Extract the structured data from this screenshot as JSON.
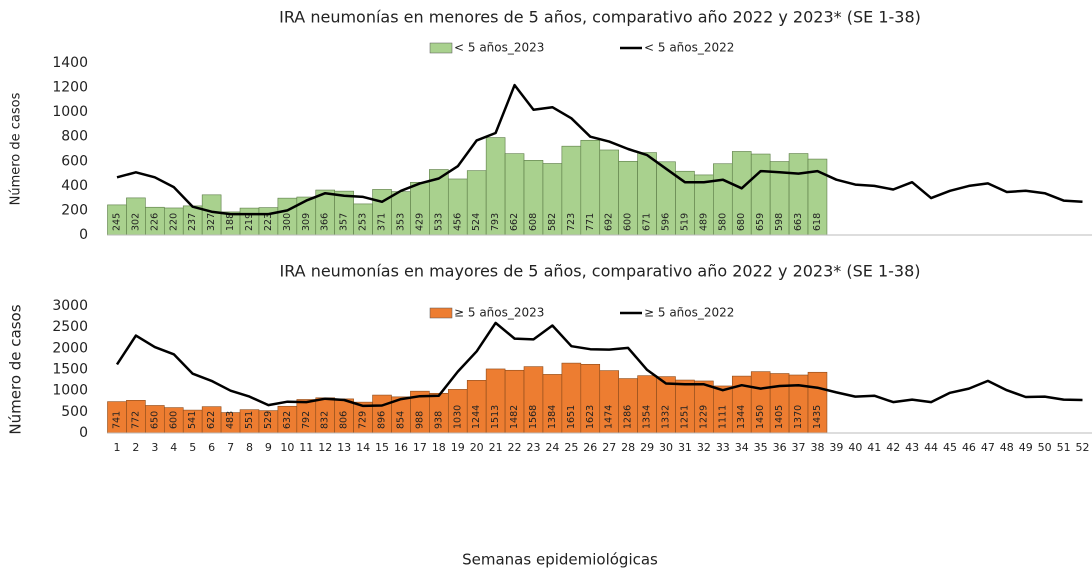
{
  "chart_data": [
    {
      "type": "bar",
      "title": "IRA neumonías en menores de 5 años, comparativo año 2022 y 2023* (SE 1-38)",
      "y_label": "Número de casos",
      "categories": [
        null,
        null,
        null,
        null,
        null,
        null,
        null,
        null,
        null,
        null,
        null,
        null,
        null,
        null,
        null,
        null,
        null,
        null,
        null,
        null,
        null,
        null,
        null,
        null,
        null,
        null,
        null,
        null,
        null,
        null,
        null,
        null,
        null,
        null,
        null,
        null,
        null,
        null,
        null,
        null,
        null,
        null,
        null,
        null,
        null,
        null,
        null,
        null,
        null,
        null,
        null,
        null
      ],
      "ylim": [
        0,
        1400
      ],
      "yticks": [
        0,
        200,
        400,
        600,
        800,
        1000,
        1200,
        1400
      ],
      "legend": "top",
      "series": [
        {
          "name": "< 5 años_2023",
          "color": "#a9d18e",
          "type": "bar",
          "values": [
            245,
            302,
            226,
            220,
            237,
            327,
            188,
            219,
            223,
            300,
            309,
            366,
            357,
            253,
            371,
            353,
            429,
            533,
            456,
            524,
            793,
            662,
            608,
            582,
            723,
            771,
            692,
            600,
            671,
            596,
            519,
            489,
            580,
            680,
            659,
            598,
            663,
            618,
            null,
            null,
            null,
            null,
            null,
            null,
            null,
            null,
            null,
            null,
            null,
            null,
            null,
            null
          ]
        },
        {
          "name": "< 5 años_2022",
          "color": "#000000",
          "type": "line",
          "values": [
            470,
            510,
            470,
            390,
            230,
            190,
            170,
            170,
            170,
            200,
            280,
            340,
            320,
            310,
            270,
            360,
            420,
            460,
            560,
            770,
            830,
            1220,
            1020,
            1040,
            950,
            800,
            760,
            700,
            650,
            540,
            430,
            430,
            450,
            380,
            520,
            510,
            500,
            520,
            450,
            410,
            400,
            370,
            430,
            300,
            360,
            400,
            420,
            350,
            360,
            340,
            280,
            270
          ]
        }
      ]
    },
    {
      "type": "bar",
      "title": "IRA neumonías en mayores de 5 años, comparativo año 2022 y 2023* (SE 1-38)",
      "y_label": "Número de casos",
      "x_label": "Semanas epidemiológicas",
      "categories": [
        1,
        2,
        3,
        4,
        5,
        6,
        7,
        8,
        9,
        10,
        11,
        12,
        13,
        14,
        15,
        16,
        17,
        18,
        19,
        20,
        21,
        22,
        23,
        24,
        25,
        26,
        27,
        28,
        29,
        30,
        31,
        32,
        33,
        34,
        35,
        36,
        37,
        38,
        39,
        40,
        41,
        42,
        43,
        44,
        45,
        46,
        47,
        48,
        49,
        50,
        51,
        52
      ],
      "ylim": [
        0,
        3000
      ],
      "yticks": [
        0,
        500,
        1000,
        1500,
        2000,
        2500,
        3000
      ],
      "legend": "top",
      "series": [
        {
          "name": "≥ 5 años_2023",
          "color": "#ed7d31",
          "type": "bar",
          "values": [
            741,
            772,
            650,
            600,
            541,
            622,
            483,
            551,
            529,
            632,
            792,
            832,
            806,
            729,
            896,
            854,
            988,
            938,
            1030,
            1244,
            1513,
            1482,
            1568,
            1384,
            1651,
            1623,
            1474,
            1286,
            1354,
            1332,
            1251,
            1229,
            1111,
            1344,
            1450,
            1405,
            1370,
            1435,
            null,
            null,
            null,
            null,
            null,
            null,
            null,
            null,
            null,
            null,
            null,
            null,
            null,
            null
          ]
        },
        {
          "name": "≥ 5 años_2022",
          "color": "#000000",
          "type": "line",
          "values": [
            1620,
            2300,
            2030,
            1860,
            1400,
            1230,
            1000,
            860,
            660,
            740,
            730,
            810,
            780,
            640,
            650,
            800,
            870,
            880,
            1450,
            1930,
            2600,
            2230,
            2210,
            2540,
            2050,
            1980,
            1970,
            2010,
            1490,
            1170,
            1150,
            1150,
            1010,
            1130,
            1050,
            1110,
            1130,
            1070,
            960,
            860,
            880,
            730,
            790,
            730,
            950,
            1050,
            1230,
            1010,
            850,
            860,
            790,
            780
          ]
        }
      ]
    }
  ]
}
